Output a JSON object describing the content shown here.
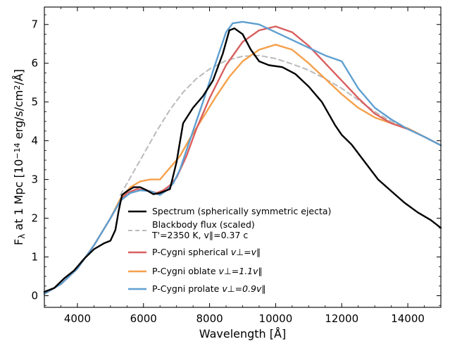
{
  "chart_data": {
    "type": "line",
    "xlabel": "Wavelength [Å]",
    "ylabel": "F_λ at 1 Mpc [10^-14 erg/s/cm²/Å]",
    "xlim": [
      3000,
      15000
    ],
    "ylim": [
      -0.3,
      7.45
    ],
    "xticks": [
      4000,
      6000,
      8000,
      10000,
      12000,
      14000
    ],
    "yticks": [
      0,
      1,
      2,
      3,
      4,
      5,
      6,
      7
    ],
    "grid": false,
    "legend_position": "lower-center",
    "series": [
      {
        "name": "Spectrum (spherically symmetric ejecta)",
        "color": "#000000",
        "style": "solid",
        "x": [
          3000,
          3300,
          3600,
          3900,
          4200,
          4500,
          4800,
          5000,
          5150,
          5250,
          5350,
          5500,
          5700,
          5900,
          6100,
          6300,
          6500,
          6800,
          7000,
          7200,
          7500,
          7800,
          8100,
          8400,
          8600,
          8750,
          9000,
          9250,
          9500,
          9800,
          10200,
          10600,
          11000,
          11400,
          11800,
          12000,
          12300,
          12700,
          13100,
          13500,
          13900,
          14300,
          14700,
          15000
        ],
        "y": [
          0.1,
          0.2,
          0.45,
          0.65,
          0.95,
          1.2,
          1.35,
          1.42,
          1.7,
          2.2,
          2.6,
          2.7,
          2.8,
          2.8,
          2.72,
          2.62,
          2.65,
          2.75,
          3.45,
          4.45,
          4.85,
          5.15,
          5.55,
          6.25,
          6.85,
          6.9,
          6.75,
          6.35,
          6.05,
          5.95,
          5.9,
          5.72,
          5.4,
          5.0,
          4.4,
          4.15,
          3.9,
          3.45,
          3.0,
          2.7,
          2.4,
          2.15,
          1.95,
          1.75
        ]
      },
      {
        "name": "Blackbody flux (scaled)",
        "label_line2": "T'=2350 K, v∥=0.37 c",
        "color": "#bbbbbb",
        "style": "dashed",
        "x": [
          5300,
          5600,
          6000,
          6400,
          6800,
          7200,
          7600,
          8000,
          8500,
          9000,
          9500,
          10000,
          10500,
          11000,
          11500,
          12000,
          12500,
          13000,
          13500,
          14000
        ],
        "y": [
          2.6,
          3.05,
          3.65,
          4.25,
          4.8,
          5.25,
          5.6,
          5.85,
          6.07,
          6.18,
          6.2,
          6.12,
          5.98,
          5.82,
          5.6,
          5.35,
          5.05,
          4.75,
          4.5,
          4.3
        ]
      },
      {
        "name": "P-Cygni spherical",
        "label_math": "v⊥=v∥",
        "color": "#d95f5f",
        "style": "solid",
        "x": [
          3000,
          3500,
          4000,
          4500,
          5000,
          5300,
          5500,
          5800,
          6100,
          6400,
          6600,
          6800,
          7000,
          7300,
          7600,
          8000,
          8500,
          9000,
          9500,
          10000,
          10500,
          11000,
          11500,
          12000,
          12500,
          13000,
          13500,
          14000,
          14500,
          15000
        ],
        "y": [
          0.05,
          0.3,
          0.7,
          1.3,
          2.0,
          2.45,
          2.65,
          2.75,
          2.72,
          2.65,
          2.72,
          2.85,
          3.05,
          3.6,
          4.3,
          5.1,
          5.95,
          6.55,
          6.85,
          6.95,
          6.8,
          6.45,
          6.0,
          5.55,
          5.1,
          4.7,
          4.45,
          4.3,
          4.1,
          3.88
        ]
      },
      {
        "name": "P-Cygni oblate",
        "label_math": "v⊥=1.1v∥",
        "color": "#f5a04a",
        "style": "solid",
        "x": [
          3000,
          3500,
          4000,
          4500,
          5000,
          5300,
          5600,
          5900,
          6200,
          6500,
          6700,
          6900,
          7100,
          7400,
          7800,
          8200,
          8600,
          9000,
          9500,
          10000,
          10500,
          11000,
          11500,
          12000,
          12500,
          13000,
          13500,
          14000,
          14500,
          15000
        ],
        "y": [
          0.05,
          0.3,
          0.7,
          1.3,
          2.0,
          2.5,
          2.8,
          2.95,
          3.0,
          3.0,
          3.2,
          3.4,
          3.6,
          4.05,
          4.6,
          5.15,
          5.65,
          6.05,
          6.35,
          6.48,
          6.35,
          6.0,
          5.6,
          5.2,
          4.85,
          4.6,
          4.45,
          4.32,
          4.1,
          3.88
        ]
      },
      {
        "name": "P-Cygni prolate",
        "label_math": "v⊥=0.9v∥",
        "color": "#5f9fd0",
        "style": "solid",
        "x": [
          3000,
          3500,
          4000,
          4500,
          5000,
          5300,
          5600,
          5900,
          6200,
          6500,
          6700,
          6900,
          7100,
          7400,
          7800,
          8200,
          8500,
          8700,
          9000,
          9500,
          10000,
          10500,
          11000,
          11500,
          12000,
          12500,
          13000,
          13500,
          14000,
          14500,
          15000
        ],
        "y": [
          0.05,
          0.3,
          0.7,
          1.3,
          2.0,
          2.45,
          2.65,
          2.72,
          2.7,
          2.6,
          2.72,
          2.9,
          3.25,
          4.0,
          5.0,
          6.05,
          6.8,
          7.03,
          7.07,
          7.0,
          6.8,
          6.6,
          6.4,
          6.2,
          6.05,
          5.35,
          4.85,
          4.55,
          4.3,
          4.1,
          3.88
        ]
      }
    ]
  }
}
